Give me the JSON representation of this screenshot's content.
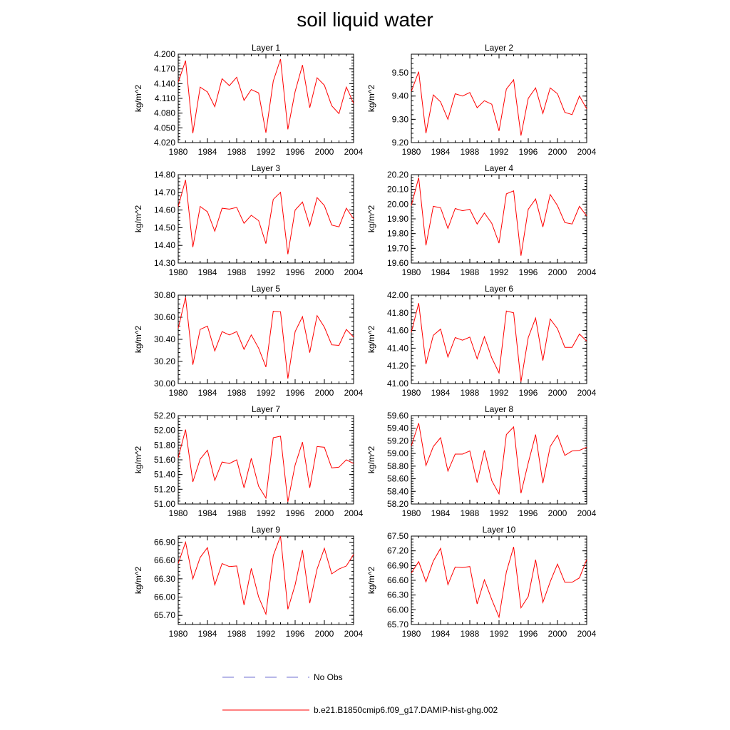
{
  "title": "soil liquid water",
  "colors": {
    "model": "#ff0000",
    "obs": "#6f6fd0",
    "axis": "#000000"
  },
  "legend": [
    {
      "label": "No Obs",
      "style": "dashed",
      "color": "#6f6fd0"
    },
    {
      "label": "b.e21.B1850cmip6.f09_g17.DAMIP-hist-ghg.002",
      "style": "solid",
      "color": "#ff0000"
    }
  ],
  "chart_data": [
    {
      "type": "line",
      "title": "Layer 1",
      "ylabel": "kg/m^2",
      "xlim": [
        1980,
        2004
      ],
      "ylim": [
        4.02,
        4.2
      ],
      "yticks": [
        "4.020",
        "4.050",
        "4.080",
        "4.110",
        "4.140",
        "4.170",
        "4.200"
      ],
      "xticks": [
        "1980",
        "1984",
        "1988",
        "1992",
        "1996",
        "2000",
        "2004"
      ],
      "x": [
        1980,
        1981,
        1982,
        1983,
        1984,
        1985,
        1986,
        1987,
        1988,
        1989,
        1990,
        1991,
        1992,
        1993,
        1994,
        1995,
        1996,
        1997,
        1998,
        1999,
        2000,
        2001,
        2002,
        2003,
        2004
      ],
      "series": [
        {
          "name": "b.e21.B1850cmip6.f09_g17.DAMIP-hist-ghg.002",
          "values": [
            4.143,
            4.187,
            4.039,
            4.133,
            4.123,
            4.093,
            4.15,
            4.136,
            4.153,
            4.106,
            4.128,
            4.121,
            4.04,
            4.145,
            4.19,
            4.047,
            4.124,
            4.178,
            4.091,
            4.152,
            4.137,
            4.095,
            4.079,
            4.133,
            4.1
          ]
        }
      ]
    },
    {
      "type": "line",
      "title": "Layer 2",
      "ylabel": "kg/m^2",
      "xlim": [
        1980,
        2004
      ],
      "ylim": [
        9.2,
        9.58
      ],
      "yticks": [
        "9.20",
        "9.30",
        "9.40",
        "9.50"
      ],
      "xticks": [
        "1980",
        "1984",
        "1988",
        "1992",
        "1996",
        "2000",
        "2004"
      ],
      "x": [
        1980,
        1981,
        1982,
        1983,
        1984,
        1985,
        1986,
        1987,
        1988,
        1989,
        1990,
        1991,
        1992,
        1993,
        1994,
        1995,
        1996,
        1997,
        1998,
        1999,
        2000,
        2001,
        2002,
        2003,
        2004
      ],
      "series": [
        {
          "name": "b.e21.B1850cmip6.f09_g17.DAMIP-hist-ghg.002",
          "values": [
            9.42,
            9.505,
            9.24,
            9.405,
            9.375,
            9.3,
            9.41,
            9.4,
            9.415,
            9.35,
            9.38,
            9.365,
            9.25,
            9.43,
            9.47,
            9.23,
            9.39,
            9.435,
            9.325,
            9.435,
            9.41,
            9.33,
            9.32,
            9.4,
            9.345
          ]
        }
      ]
    },
    {
      "type": "line",
      "title": "Layer 3",
      "ylabel": "kg/m^2",
      "xlim": [
        1980,
        2004
      ],
      "ylim": [
        14.3,
        14.8
      ],
      "yticks": [
        "14.30",
        "14.40",
        "14.50",
        "14.60",
        "14.70",
        "14.80"
      ],
      "xticks": [
        "1980",
        "1984",
        "1988",
        "1992",
        "1996",
        "2000",
        "2004"
      ],
      "x": [
        1980,
        1981,
        1982,
        1983,
        1984,
        1985,
        1986,
        1987,
        1988,
        1989,
        1990,
        1991,
        1992,
        1993,
        1994,
        1995,
        1996,
        1997,
        1998,
        1999,
        2000,
        2001,
        2002,
        2003,
        2004
      ],
      "series": [
        {
          "name": "b.e21.B1850cmip6.f09_g17.DAMIP-hist-ghg.002",
          "values": [
            14.62,
            14.77,
            14.39,
            14.62,
            14.59,
            14.48,
            14.61,
            14.605,
            14.615,
            14.525,
            14.57,
            14.54,
            14.41,
            14.66,
            14.7,
            14.35,
            14.6,
            14.645,
            14.51,
            14.67,
            14.625,
            14.515,
            14.505,
            14.61,
            14.55
          ]
        }
      ]
    },
    {
      "type": "line",
      "title": "Layer 4",
      "ylabel": "kg/m^2",
      "xlim": [
        1980,
        2004
      ],
      "ylim": [
        19.6,
        20.2
      ],
      "yticks": [
        "19.60",
        "19.70",
        "19.80",
        "19.90",
        "20.00",
        "20.10",
        "20.20"
      ],
      "xticks": [
        "1980",
        "1984",
        "1988",
        "1992",
        "1996",
        "2000",
        "2004"
      ],
      "x": [
        1980,
        1981,
        1982,
        1983,
        1984,
        1985,
        1986,
        1987,
        1988,
        1989,
        1990,
        1991,
        1992,
        1993,
        1994,
        1995,
        1996,
        1997,
        1998,
        1999,
        2000,
        2001,
        2002,
        2003,
        2004
      ],
      "series": [
        {
          "name": "b.e21.B1850cmip6.f09_g17.DAMIP-hist-ghg.002",
          "values": [
            19.99,
            20.18,
            19.72,
            19.985,
            19.975,
            19.835,
            19.97,
            19.955,
            19.965,
            19.865,
            19.94,
            19.87,
            19.735,
            20.07,
            20.09,
            19.65,
            19.965,
            20.035,
            19.845,
            20.065,
            19.99,
            19.875,
            19.865,
            19.985,
            19.92
          ]
        }
      ]
    },
    {
      "type": "line",
      "title": "Layer 5",
      "ylabel": "kg/m^2",
      "xlim": [
        1980,
        2004
      ],
      "ylim": [
        30.0,
        30.8
      ],
      "yticks": [
        "30.00",
        "30.20",
        "30.40",
        "30.60",
        "30.80"
      ],
      "xticks": [
        "1980",
        "1984",
        "1988",
        "1992",
        "1996",
        "2000",
        "2004"
      ],
      "x": [
        1980,
        1981,
        1982,
        1983,
        1984,
        1985,
        1986,
        1987,
        1988,
        1989,
        1990,
        1991,
        1992,
        1993,
        1994,
        1995,
        1996,
        1997,
        1998,
        1999,
        2000,
        2001,
        2002,
        2003,
        2004
      ],
      "series": [
        {
          "name": "b.e21.B1850cmip6.f09_g17.DAMIP-hist-ghg.002",
          "values": [
            30.5,
            30.78,
            30.17,
            30.49,
            30.52,
            30.295,
            30.47,
            30.44,
            30.47,
            30.31,
            30.44,
            30.32,
            30.15,
            30.655,
            30.65,
            30.045,
            30.47,
            30.605,
            30.28,
            30.615,
            30.51,
            30.35,
            30.345,
            30.49,
            30.42
          ]
        }
      ]
    },
    {
      "type": "line",
      "title": "Layer 6",
      "ylabel": "kg/m^2",
      "xlim": [
        1980,
        2004
      ],
      "ylim": [
        41.0,
        42.0
      ],
      "yticks": [
        "41.00",
        "41.20",
        "41.40",
        "41.60",
        "41.80",
        "42.00"
      ],
      "xticks": [
        "1980",
        "1984",
        "1988",
        "1992",
        "1996",
        "2000",
        "2004"
      ],
      "x": [
        1980,
        1981,
        1982,
        1983,
        1984,
        1985,
        1986,
        1987,
        1988,
        1989,
        1990,
        1991,
        1992,
        1993,
        1994,
        1995,
        1996,
        1997,
        1998,
        1999,
        2000,
        2001,
        2002,
        2003,
        2004
      ],
      "series": [
        {
          "name": "b.e21.B1850cmip6.f09_g17.DAMIP-hist-ghg.002",
          "values": [
            41.58,
            41.91,
            41.22,
            41.545,
            41.615,
            41.3,
            41.52,
            41.49,
            41.525,
            41.28,
            41.53,
            41.29,
            41.12,
            41.82,
            41.8,
            41.02,
            41.52,
            41.74,
            41.26,
            41.73,
            41.62,
            41.41,
            41.41,
            41.56,
            41.48
          ]
        }
      ]
    },
    {
      "type": "line",
      "title": "Layer 7",
      "ylabel": "kg/m^2",
      "xlim": [
        1980,
        2004
      ],
      "ylim": [
        51.0,
        52.2
      ],
      "yticks": [
        "51.00",
        "51.20",
        "51.40",
        "51.60",
        "51.80",
        "52.00",
        "52.20"
      ],
      "xticks": [
        "1980",
        "1984",
        "1988",
        "1992",
        "1996",
        "2000",
        "2004"
      ],
      "x": [
        1980,
        1981,
        1982,
        1983,
        1984,
        1985,
        1986,
        1987,
        1988,
        1989,
        1990,
        1991,
        1992,
        1993,
        1994,
        1995,
        1996,
        1997,
        1998,
        1999,
        2000,
        2001,
        2002,
        2003,
        2004
      ],
      "series": [
        {
          "name": "b.e21.B1850cmip6.f09_g17.DAMIP-hist-ghg.002",
          "values": [
            51.63,
            52.01,
            51.3,
            51.61,
            51.73,
            51.32,
            51.57,
            51.55,
            51.6,
            51.22,
            51.62,
            51.24,
            51.08,
            51.9,
            51.92,
            51.03,
            51.53,
            51.84,
            51.22,
            51.78,
            51.77,
            51.49,
            51.5,
            51.6,
            51.55
          ]
        }
      ]
    },
    {
      "type": "line",
      "title": "Layer 8",
      "ylabel": "kg/m^2",
      "xlim": [
        1980,
        2004
      ],
      "ylim": [
        58.2,
        59.6
      ],
      "yticks": [
        "58.20",
        "58.40",
        "58.60",
        "58.80",
        "59.00",
        "59.20",
        "59.40",
        "59.60"
      ],
      "xticks": [
        "1980",
        "1984",
        "1988",
        "1992",
        "1996",
        "2000",
        "2004"
      ],
      "x": [
        1980,
        1981,
        1982,
        1983,
        1984,
        1985,
        1986,
        1987,
        1988,
        1989,
        1990,
        1991,
        1992,
        1993,
        1994,
        1995,
        1996,
        1997,
        1998,
        1999,
        2000,
        2001,
        2002,
        2003,
        2004
      ],
      "series": [
        {
          "name": "b.e21.B1850cmip6.f09_g17.DAMIP-hist-ghg.002",
          "values": [
            59.12,
            59.48,
            58.81,
            59.11,
            59.25,
            58.72,
            58.99,
            58.99,
            59.04,
            58.54,
            59.05,
            58.57,
            58.36,
            59.3,
            59.42,
            58.37,
            58.85,
            59.3,
            58.53,
            59.11,
            59.29,
            58.97,
            59.04,
            59.05,
            59.1
          ]
        }
      ]
    },
    {
      "type": "line",
      "title": "Layer 9",
      "ylabel": "kg/m^2",
      "xlim": [
        1980,
        2004
      ],
      "ylim": [
        65.55,
        67.0
      ],
      "yticks": [
        "65.70",
        "66.00",
        "66.30",
        "66.60",
        "66.90"
      ],
      "xticks": [
        "1980",
        "1984",
        "1988",
        "1992",
        "1996",
        "2000",
        "2004"
      ],
      "x": [
        1980,
        1981,
        1982,
        1983,
        1984,
        1985,
        1986,
        1987,
        1988,
        1989,
        1990,
        1991,
        1992,
        1993,
        1994,
        1995,
        1996,
        1997,
        1998,
        1999,
        2000,
        2001,
        2002,
        2003,
        2004
      ],
      "series": [
        {
          "name": "b.e21.B1850cmip6.f09_g17.DAMIP-hist-ghg.002",
          "values": [
            66.55,
            66.9,
            66.3,
            66.65,
            66.81,
            66.2,
            66.55,
            66.5,
            66.51,
            65.87,
            66.47,
            66.0,
            65.72,
            66.68,
            67.0,
            65.8,
            66.2,
            66.77,
            65.9,
            66.46,
            66.8,
            66.38,
            66.46,
            66.51,
            66.7
          ]
        }
      ]
    },
    {
      "type": "line",
      "title": "Layer 10",
      "ylabel": "kg/m^2",
      "xlim": [
        1980,
        2004
      ],
      "ylim": [
        65.7,
        67.5
      ],
      "yticks": [
        "65.70",
        "66.00",
        "66.30",
        "66.60",
        "66.90",
        "67.20",
        "67.50"
      ],
      "xticks": [
        "1980",
        "1984",
        "1988",
        "1992",
        "1996",
        "2000",
        "2004"
      ],
      "x": [
        1980,
        1981,
        1982,
        1983,
        1984,
        1985,
        1986,
        1987,
        1988,
        1989,
        1990,
        1991,
        1992,
        1993,
        1994,
        1995,
        1996,
        1997,
        1998,
        1999,
        2000,
        2001,
        2002,
        2003,
        2004
      ],
      "series": [
        {
          "name": "b.e21.B1850cmip6.f09_g17.DAMIP-hist-ghg.002",
          "values": [
            66.75,
            66.98,
            66.57,
            66.99,
            67.25,
            66.51,
            66.87,
            66.86,
            66.88,
            66.12,
            66.61,
            66.21,
            65.85,
            66.77,
            67.28,
            66.04,
            66.27,
            67.02,
            66.15,
            66.57,
            66.93,
            66.56,
            66.56,
            66.65,
            67.02
          ]
        }
      ]
    }
  ]
}
